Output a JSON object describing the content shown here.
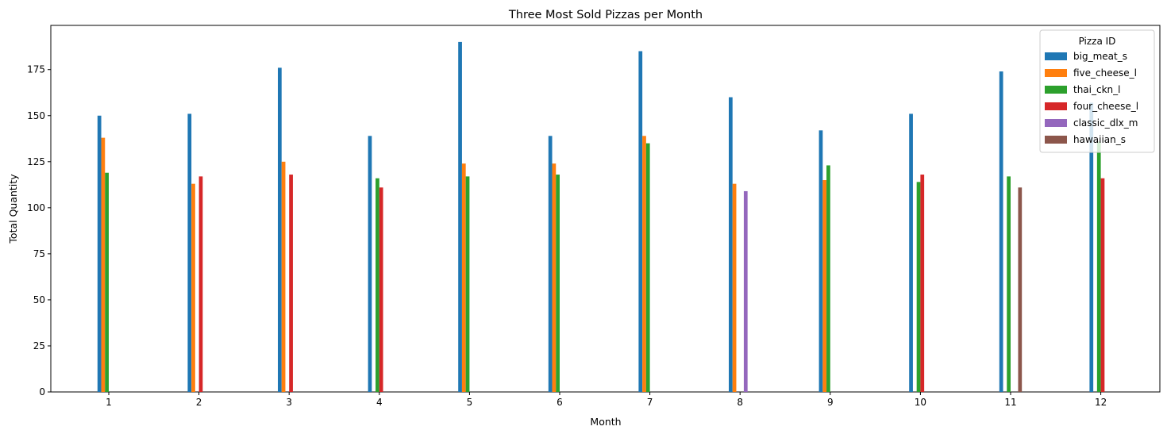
{
  "chart_data": {
    "type": "bar",
    "title": "Three Most Sold Pizzas per Month",
    "xlabel": "Month",
    "ylabel": "Total Quantity",
    "categories": [
      "1",
      "2",
      "3",
      "4",
      "5",
      "6",
      "7",
      "8",
      "9",
      "10",
      "11",
      "12"
    ],
    "ylim": [
      0,
      199
    ],
    "yticks": [
      0,
      25,
      50,
      75,
      100,
      125,
      150,
      175
    ],
    "grid": false,
    "legend": {
      "title": "Pizza ID",
      "placement": "top-right"
    },
    "series": [
      {
        "name": "big_meat_s",
        "color": "#1f77b4",
        "values": [
          150,
          151,
          176,
          139,
          190,
          139,
          185,
          160,
          142,
          151,
          174,
          157
        ]
      },
      {
        "name": "five_cheese_l",
        "color": "#ff7f0e",
        "values": [
          138,
          113,
          125,
          null,
          124,
          124,
          139,
          113,
          115,
          null,
          null,
          null
        ]
      },
      {
        "name": "thai_ckn_l",
        "color": "#2ca02c",
        "values": [
          119,
          null,
          null,
          116,
          117,
          118,
          135,
          null,
          123,
          114,
          117,
          136
        ]
      },
      {
        "name": "four_cheese_l",
        "color": "#d62728",
        "values": [
          null,
          117,
          118,
          111,
          null,
          null,
          null,
          null,
          null,
          118,
          null,
          116
        ]
      },
      {
        "name": "classic_dlx_m",
        "color": "#9467bd",
        "values": [
          null,
          null,
          null,
          null,
          null,
          null,
          null,
          109,
          null,
          null,
          null,
          null
        ]
      },
      {
        "name": "hawaiian_s",
        "color": "#8c564b",
        "values": [
          null,
          null,
          null,
          null,
          null,
          null,
          null,
          null,
          null,
          null,
          111,
          null
        ]
      }
    ]
  }
}
